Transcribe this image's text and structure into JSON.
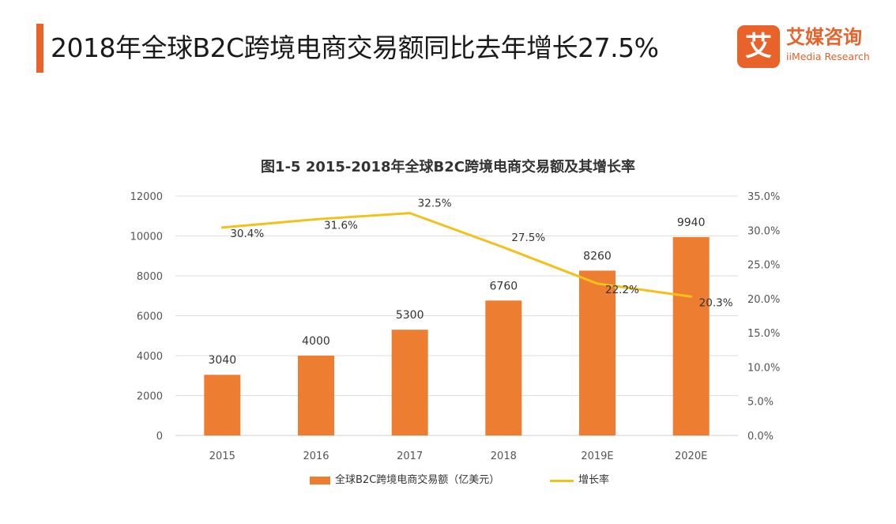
{
  "header": {
    "title": "2018年全球B2C跨境电商交易额同比去年增长27.5%",
    "logo_cn": "艾媒咨询",
    "logo_en": "iiMedia Research",
    "logo_mark": "艾"
  },
  "colors": {
    "accent": "#e8622a",
    "bar": "#ed7d31",
    "line": "#f2c11b",
    "grid": "#dedede"
  },
  "chart_data": {
    "type": "bar",
    "title": "图1-5  2015-2018年全球B2C跨境电商交易额及其增长率",
    "categories": [
      "2015",
      "2016",
      "2017",
      "2018",
      "2019E",
      "2020E"
    ],
    "series": [
      {
        "name": "全球B2C跨境电商交易额（亿美元）",
        "type": "bar",
        "axis": "left",
        "values": [
          3040,
          4000,
          5300,
          6760,
          8260,
          9940
        ],
        "labels": [
          "3040",
          "4000",
          "5300",
          "6760",
          "8260",
          "9940"
        ]
      },
      {
        "name": "增长率",
        "type": "line",
        "axis": "right",
        "values": [
          30.4,
          31.6,
          32.5,
          27.5,
          22.2,
          20.3
        ],
        "labels": [
          "30.4%",
          "31.6%",
          "32.5%",
          "27.5%",
          "22.2%",
          "20.3%"
        ]
      }
    ],
    "y_left": {
      "min": 0,
      "max": 12000,
      "ticks": [
        "0",
        "2000",
        "4000",
        "6000",
        "8000",
        "10000",
        "12000"
      ]
    },
    "y_right": {
      "min": 0,
      "max": 35,
      "ticks": [
        "0.0%",
        "5.0%",
        "10.0%",
        "15.0%",
        "20.0%",
        "25.0%",
        "30.0%",
        "35.0%"
      ]
    },
    "grid": true,
    "legend_position": "bottom"
  }
}
